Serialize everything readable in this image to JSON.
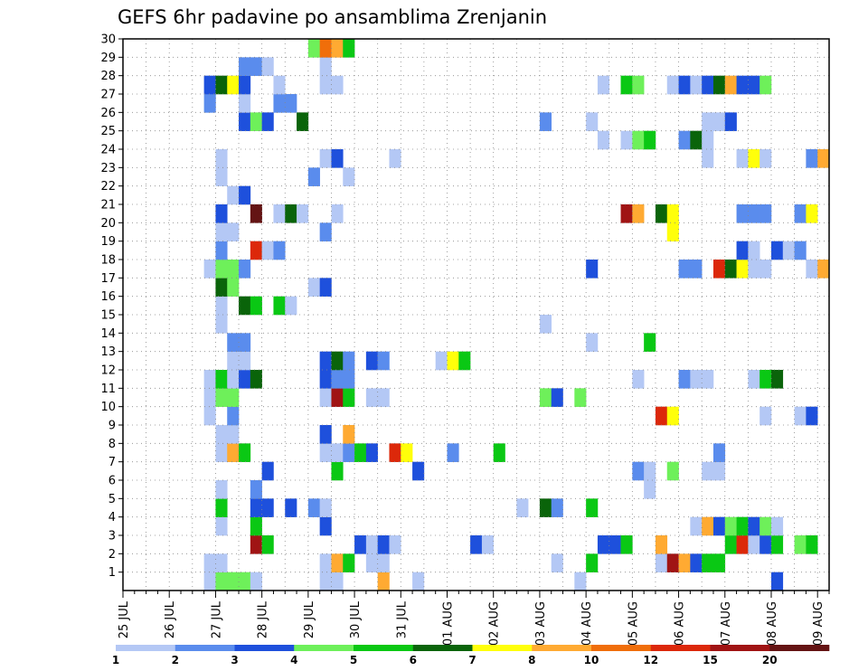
{
  "chart_data": {
    "type": "heatmap",
    "title": "GEFS 6hr padavine po ansamblima Zrenjanin",
    "xlabel": "",
    "ylabel": "",
    "x_tick_labels": [
      "25 JUL",
      "26 JUL",
      "27 JUL",
      "28 JUL",
      "29 JUL",
      "30 JUL",
      "31 JUL",
      "01 AUG",
      "02 AUG",
      "03 AUG",
      "04 AUG",
      "05 AUG",
      "06 AUG",
      "07 AUG",
      "08 AUG",
      "09 AUG"
    ],
    "y_tick_labels": [
      "1",
      "2",
      "3",
      "4",
      "5",
      "6",
      "7",
      "8",
      "9",
      "10",
      "11",
      "12",
      "13",
      "14",
      "15",
      "16",
      "17",
      "18",
      "19",
      "20",
      "21",
      "22",
      "23",
      "24",
      "25",
      "26",
      "27",
      "28",
      "29",
      "30"
    ],
    "x_range_6h_steps": [
      0,
      61
    ],
    "y_range_members": [
      0,
      30
    ],
    "grid": true,
    "colorbar": {
      "position": "bottom",
      "tick_labels": [
        "1",
        "2",
        "3",
        "4",
        "5",
        "6",
        "7",
        "8",
        "10",
        "12",
        "15",
        "20"
      ],
      "colors": [
        "#b4c8f5",
        "#5a8ced",
        "#1e50dc",
        "#6ef05a",
        "#0ac814",
        "#0a640a",
        "#ffff0a",
        "#ffaa32",
        "#f06e0a",
        "#dc280a",
        "#a01414",
        "#641414"
      ]
    },
    "cells": [
      [
        7,
        0,
        0
      ],
      [
        8,
        0,
        3
      ],
      [
        9,
        0,
        3
      ],
      [
        10,
        0,
        3
      ],
      [
        11,
        0,
        0
      ],
      [
        17,
        0,
        0
      ],
      [
        18,
        0,
        0
      ],
      [
        22,
        0,
        7
      ],
      [
        25,
        0,
        0
      ],
      [
        39,
        0,
        0
      ],
      [
        56,
        0,
        2
      ],
      [
        7,
        1,
        0
      ],
      [
        8,
        1,
        0
      ],
      [
        17,
        1,
        0
      ],
      [
        18,
        1,
        7
      ],
      [
        19,
        1,
        4
      ],
      [
        21,
        1,
        0
      ],
      [
        22,
        1,
        0
      ],
      [
        37,
        1,
        0
      ],
      [
        40,
        1,
        4
      ],
      [
        46,
        1,
        0
      ],
      [
        47,
        1,
        10
      ],
      [
        48,
        1,
        7
      ],
      [
        49,
        1,
        2
      ],
      [
        50,
        1,
        4
      ],
      [
        51,
        1,
        4
      ],
      [
        11,
        2,
        10
      ],
      [
        12,
        2,
        4
      ],
      [
        20,
        2,
        2
      ],
      [
        21,
        2,
        0
      ],
      [
        22,
        2,
        2
      ],
      [
        23,
        2,
        0
      ],
      [
        30,
        2,
        2
      ],
      [
        31,
        2,
        0
      ],
      [
        41,
        2,
        2
      ],
      [
        42,
        2,
        2
      ],
      [
        43,
        2,
        4
      ],
      [
        46,
        2,
        7
      ],
      [
        52,
        2,
        4
      ],
      [
        53,
        2,
        9
      ],
      [
        54,
        2,
        0
      ],
      [
        55,
        2,
        2
      ],
      [
        56,
        2,
        4
      ],
      [
        58,
        2,
        3
      ],
      [
        59,
        2,
        4
      ],
      [
        8,
        3,
        0
      ],
      [
        11,
        3,
        4
      ],
      [
        17,
        3,
        2
      ],
      [
        49,
        3,
        0
      ],
      [
        50,
        3,
        7
      ],
      [
        51,
        3,
        2
      ],
      [
        52,
        3,
        3
      ],
      [
        53,
        3,
        4
      ],
      [
        54,
        3,
        2
      ],
      [
        55,
        3,
        3
      ],
      [
        56,
        3,
        0
      ],
      [
        8,
        4,
        4
      ],
      [
        11,
        4,
        2
      ],
      [
        12,
        4,
        2
      ],
      [
        14,
        4,
        2
      ],
      [
        16,
        4,
        1
      ],
      [
        17,
        4,
        0
      ],
      [
        34,
        4,
        0
      ],
      [
        36,
        4,
        5
      ],
      [
        37,
        4,
        1
      ],
      [
        40,
        4,
        4
      ],
      [
        8,
        5,
        0
      ],
      [
        11,
        5,
        1
      ],
      [
        45,
        5,
        0
      ],
      [
        12,
        6,
        2
      ],
      [
        18,
        6,
        4
      ],
      [
        25,
        6,
        2
      ],
      [
        44,
        6,
        1
      ],
      [
        45,
        6,
        0
      ],
      [
        47,
        6,
        3
      ],
      [
        50,
        6,
        0
      ],
      [
        51,
        6,
        0
      ],
      [
        8,
        7,
        0
      ],
      [
        9,
        7,
        7
      ],
      [
        10,
        7,
        4
      ],
      [
        17,
        7,
        0
      ],
      [
        18,
        7,
        0
      ],
      [
        19,
        7,
        1
      ],
      [
        20,
        7,
        4
      ],
      [
        21,
        7,
        2
      ],
      [
        23,
        7,
        9
      ],
      [
        24,
        7,
        6
      ],
      [
        28,
        7,
        1
      ],
      [
        32,
        7,
        4
      ],
      [
        51,
        7,
        1
      ],
      [
        8,
        8,
        0
      ],
      [
        9,
        8,
        0
      ],
      [
        17,
        8,
        2
      ],
      [
        19,
        8,
        7
      ],
      [
        7,
        9,
        0
      ],
      [
        9,
        9,
        1
      ],
      [
        46,
        9,
        9
      ],
      [
        47,
        9,
        6
      ],
      [
        55,
        9,
        0
      ],
      [
        58,
        9,
        0
      ],
      [
        59,
        9,
        2
      ],
      [
        7,
        10,
        0
      ],
      [
        8,
        10,
        3
      ],
      [
        9,
        10,
        3
      ],
      [
        17,
        10,
        0
      ],
      [
        18,
        10,
        10
      ],
      [
        19,
        10,
        4
      ],
      [
        21,
        10,
        0
      ],
      [
        22,
        10,
        0
      ],
      [
        36,
        10,
        3
      ],
      [
        37,
        10,
        2
      ],
      [
        39,
        10,
        3
      ],
      [
        7,
        11,
        0
      ],
      [
        8,
        11,
        4
      ],
      [
        9,
        11,
        0
      ],
      [
        10,
        11,
        2
      ],
      [
        11,
        11,
        5
      ],
      [
        17,
        11,
        2
      ],
      [
        18,
        11,
        1
      ],
      [
        19,
        11,
        1
      ],
      [
        44,
        11,
        0
      ],
      [
        48,
        11,
        1
      ],
      [
        49,
        11,
        0
      ],
      [
        50,
        11,
        0
      ],
      [
        54,
        11,
        0
      ],
      [
        55,
        11,
        4
      ],
      [
        56,
        11,
        5
      ],
      [
        9,
        12,
        0
      ],
      [
        10,
        12,
        0
      ],
      [
        17,
        12,
        2
      ],
      [
        18,
        12,
        5
      ],
      [
        19,
        12,
        1
      ],
      [
        21,
        12,
        2
      ],
      [
        22,
        12,
        1
      ],
      [
        27,
        12,
        0
      ],
      [
        28,
        12,
        6
      ],
      [
        29,
        12,
        4
      ],
      [
        9,
        13,
        1
      ],
      [
        10,
        13,
        1
      ],
      [
        40,
        13,
        0
      ],
      [
        45,
        13,
        4
      ],
      [
        8,
        14,
        0
      ],
      [
        36,
        14,
        0
      ],
      [
        8,
        15,
        0
      ],
      [
        10,
        15,
        5
      ],
      [
        11,
        15,
        4
      ],
      [
        13,
        15,
        4
      ],
      [
        14,
        15,
        0
      ],
      [
        8,
        16,
        5
      ],
      [
        9,
        16,
        3
      ],
      [
        16,
        16,
        0
      ],
      [
        17,
        16,
        2
      ],
      [
        7,
        17,
        0
      ],
      [
        8,
        17,
        3
      ],
      [
        9,
        17,
        3
      ],
      [
        10,
        17,
        1
      ],
      [
        40,
        17,
        2
      ],
      [
        48,
        17,
        1
      ],
      [
        49,
        17,
        1
      ],
      [
        51,
        17,
        9
      ],
      [
        52,
        17,
        5
      ],
      [
        53,
        17,
        6
      ],
      [
        54,
        17,
        0
      ],
      [
        55,
        17,
        0
      ],
      [
        59,
        17,
        0
      ],
      [
        60,
        17,
        7
      ],
      [
        8,
        18,
        1
      ],
      [
        11,
        18,
        9
      ],
      [
        12,
        18,
        0
      ],
      [
        13,
        18,
        1
      ],
      [
        53,
        18,
        2
      ],
      [
        54,
        18,
        0
      ],
      [
        56,
        18,
        2
      ],
      [
        57,
        18,
        0
      ],
      [
        58,
        18,
        1
      ],
      [
        8,
        19,
        0
      ],
      [
        9,
        19,
        0
      ],
      [
        17,
        19,
        1
      ],
      [
        47,
        19,
        6
      ],
      [
        8,
        20,
        2
      ],
      [
        11,
        20,
        11
      ],
      [
        13,
        20,
        0
      ],
      [
        14,
        20,
        5
      ],
      [
        15,
        20,
        0
      ],
      [
        18,
        20,
        0
      ],
      [
        43,
        20,
        10
      ],
      [
        44,
        20,
        7
      ],
      [
        46,
        20,
        5
      ],
      [
        47,
        20,
        6
      ],
      [
        53,
        20,
        1
      ],
      [
        54,
        20,
        1
      ],
      [
        55,
        20,
        1
      ],
      [
        58,
        20,
        1
      ],
      [
        59,
        20,
        6
      ],
      [
        9,
        21,
        0
      ],
      [
        10,
        21,
        2
      ],
      [
        8,
        22,
        0
      ],
      [
        16,
        22,
        1
      ],
      [
        19,
        22,
        0
      ],
      [
        8,
        23,
        0
      ],
      [
        17,
        23,
        0
      ],
      [
        18,
        23,
        2
      ],
      [
        23,
        23,
        0
      ],
      [
        50,
        23,
        0
      ],
      [
        53,
        23,
        0
      ],
      [
        54,
        23,
        6
      ],
      [
        55,
        23,
        0
      ],
      [
        59,
        23,
        1
      ],
      [
        60,
        23,
        7
      ],
      [
        41,
        24,
        0
      ],
      [
        43,
        24,
        0
      ],
      [
        44,
        24,
        3
      ],
      [
        45,
        24,
        4
      ],
      [
        48,
        24,
        1
      ],
      [
        49,
        24,
        5
      ],
      [
        50,
        24,
        0
      ],
      [
        10,
        25,
        2
      ],
      [
        11,
        25,
        3
      ],
      [
        12,
        25,
        2
      ],
      [
        15,
        25,
        5
      ],
      [
        36,
        25,
        1
      ],
      [
        40,
        25,
        0
      ],
      [
        50,
        25,
        0
      ],
      [
        51,
        25,
        0
      ],
      [
        52,
        25,
        2
      ],
      [
        7,
        26,
        1
      ],
      [
        10,
        26,
        0
      ],
      [
        13,
        26,
        1
      ],
      [
        14,
        26,
        1
      ],
      [
        7,
        27,
        2
      ],
      [
        8,
        27,
        5
      ],
      [
        9,
        27,
        6
      ],
      [
        10,
        27,
        2
      ],
      [
        13,
        27,
        0
      ],
      [
        17,
        27,
        0
      ],
      [
        18,
        27,
        0
      ],
      [
        41,
        27,
        0
      ],
      [
        43,
        27,
        4
      ],
      [
        44,
        27,
        3
      ],
      [
        47,
        27,
        0
      ],
      [
        48,
        27,
        2
      ],
      [
        49,
        27,
        0
      ],
      [
        50,
        27,
        2
      ],
      [
        51,
        27,
        5
      ],
      [
        52,
        27,
        7
      ],
      [
        53,
        27,
        2
      ],
      [
        54,
        27,
        2
      ],
      [
        55,
        27,
        3
      ],
      [
        10,
        28,
        1
      ],
      [
        11,
        28,
        1
      ],
      [
        12,
        28,
        0
      ],
      [
        17,
        28,
        0
      ],
      [
        16,
        29,
        3
      ],
      [
        17,
        29,
        8
      ],
      [
        18,
        29,
        7
      ],
      [
        19,
        29,
        4
      ]
    ]
  }
}
